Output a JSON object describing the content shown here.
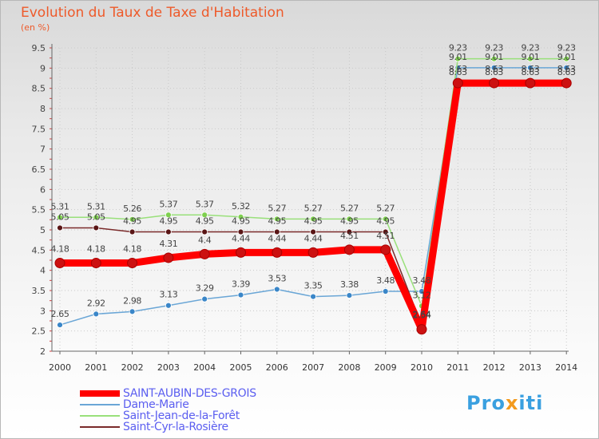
{
  "title": "Evolution du Taux de Taxe d'Habitation",
  "unit": "(en %)",
  "logo": "Proxiti",
  "chart_data": {
    "type": "line",
    "x": [
      "2000",
      "2001",
      "2002",
      "2003",
      "2004",
      "2005",
      "2006",
      "2007",
      "2008",
      "2009",
      "2010",
      "2011",
      "2012",
      "2013",
      "2014"
    ],
    "ylim": [
      2,
      9.5
    ],
    "yticks": [
      2,
      2.5,
      3,
      3.5,
      4,
      4.5,
      5,
      5.5,
      6,
      6.5,
      7,
      7.5,
      8,
      8.5,
      9,
      9.5
    ],
    "ytick_labels": [
      "2",
      "2.5",
      "3",
      "3.5",
      "4",
      "4.5",
      "5",
      "5.5",
      "6",
      "6.5",
      "7",
      "7.5",
      "8",
      "8.5",
      "9",
      "9.5"
    ],
    "grid": true,
    "legend_position": "bottom-left",
    "series": [
      {
        "name": "SAINT-AUBIN-DES-GROIS",
        "color": "#ff0000",
        "marker": "#cc1111",
        "values": [
          4.18,
          4.18,
          4.18,
          4.31,
          4.4,
          4.44,
          4.44,
          4.44,
          4.51,
          4.51,
          2.54,
          8.63,
          8.63,
          8.63,
          8.63
        ],
        "labels": [
          "4.18",
          "4.18",
          "4.18",
          "4.31",
          "4.4",
          "4.44",
          "4.44",
          "4.44",
          "4.51",
          "4.51",
          "2.54",
          "8.63",
          "8.63",
          "8.63",
          "8.63"
        ]
      },
      {
        "name": "Dame-Marie",
        "color": "#6aa6d6",
        "marker": "#3a86c8",
        "values": [
          2.65,
          2.92,
          2.98,
          3.13,
          3.29,
          3.39,
          3.53,
          3.35,
          3.38,
          3.48,
          3.48,
          9.01,
          9.01,
          9.01,
          9.01
        ],
        "labels": [
          "2.65",
          "2.92",
          "2.98",
          "3.13",
          "3.29",
          "3.39",
          "3.53",
          "3.35",
          "3.38",
          "3.48",
          "3.48",
          "9.01",
          "9.01",
          "9.01",
          "9.01"
        ]
      },
      {
        "name": "Saint-Jean-de-la-Forêt",
        "color": "#99e07a",
        "marker": "#7ed04e",
        "values": [
          5.31,
          5.31,
          5.26,
          5.37,
          5.37,
          5.32,
          5.27,
          5.27,
          5.27,
          5.27,
          3.12,
          9.23,
          9.23,
          9.23,
          9.23
        ],
        "labels": [
          "5.31",
          "5.31",
          "5.26",
          "5.37",
          "5.37",
          "5.32",
          "5.27",
          "5.27",
          "5.27",
          "5.27",
          "3.12",
          "9.23",
          "9.23",
          "9.23",
          "9.23"
        ]
      },
      {
        "name": "Saint-Cyr-la-Rosière",
        "color": "#7a2a2a",
        "marker": "#5a1616",
        "values": [
          5.05,
          5.05,
          4.95,
          4.95,
          4.95,
          4.95,
          4.95,
          4.95,
          4.95,
          4.95,
          2.64,
          8.63,
          8.63,
          8.63,
          8.63
        ],
        "labels": [
          "5.05",
          "5.05",
          "4.95",
          "4.95",
          "4.95",
          "4.95",
          "4.95",
          "4.95",
          "4.95",
          "4.95",
          "2.64",
          "8.63",
          "8.63",
          "8.63",
          "8.63"
        ]
      }
    ]
  }
}
